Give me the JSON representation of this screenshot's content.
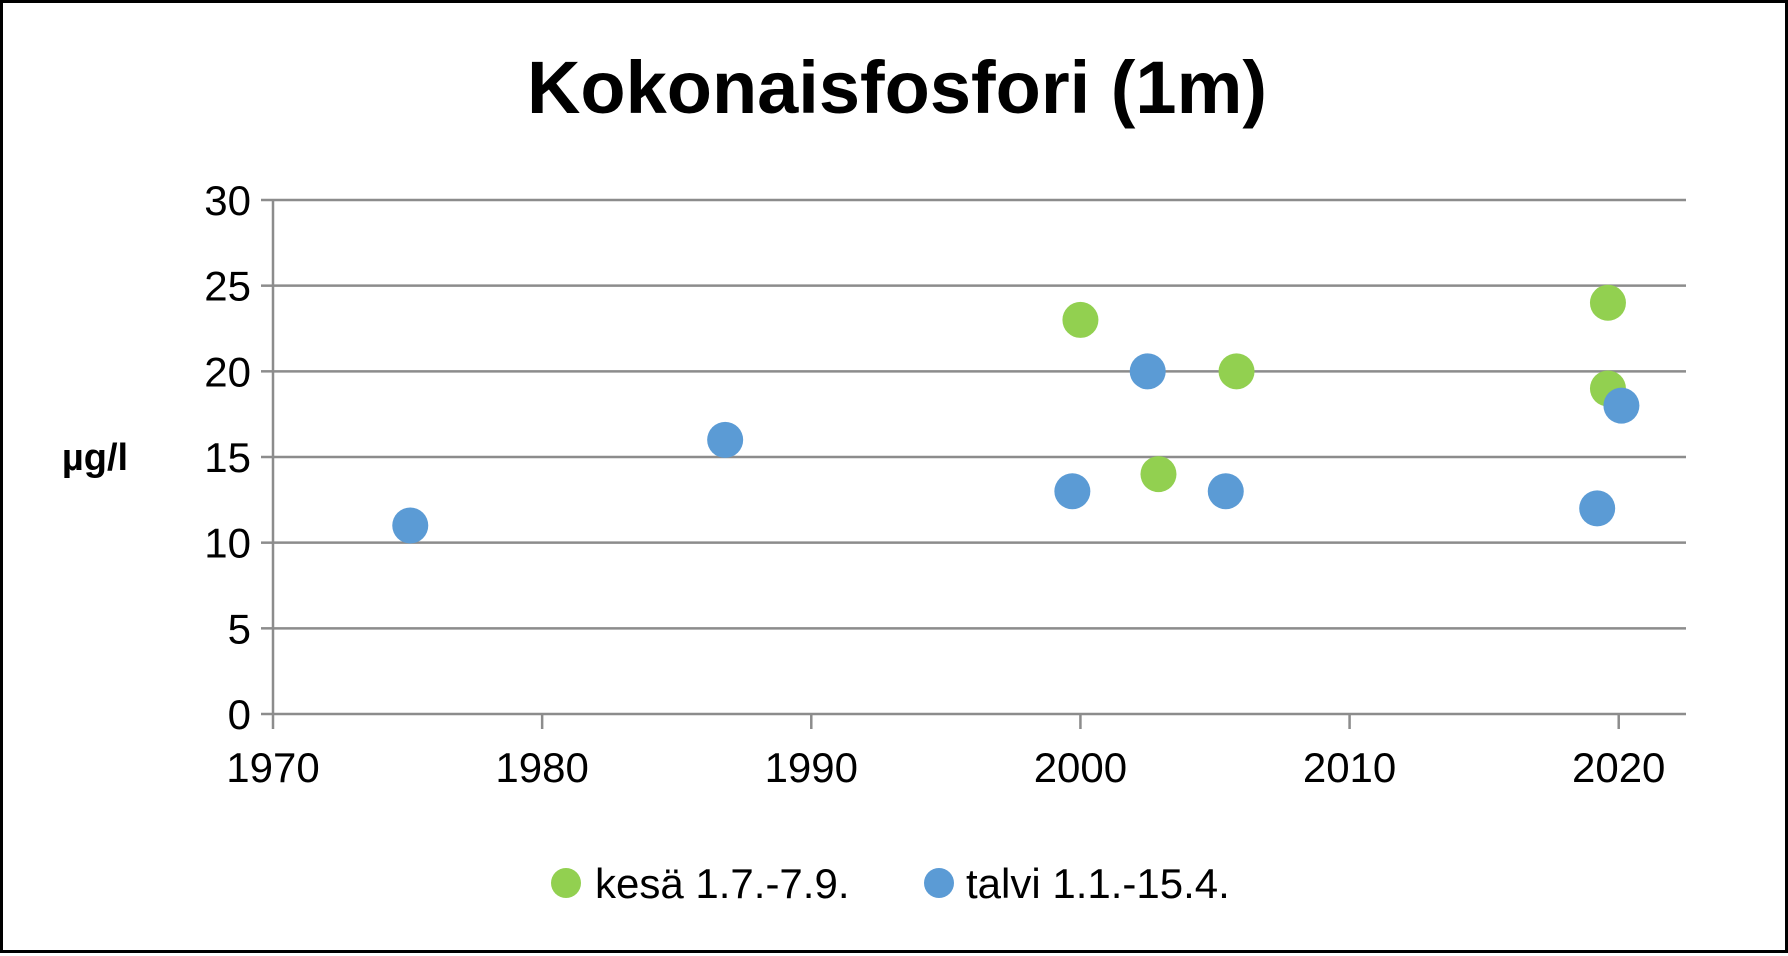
{
  "chart_data": {
    "type": "scatter",
    "title": "Kokonaisfosfori (1m)",
    "xlabel": "",
    "ylabel": "µg/l",
    "xlim": [
      1970,
      2022.5
    ],
    "ylim": [
      0,
      30
    ],
    "x_ticks": [
      1970,
      1980,
      1990,
      2000,
      2010,
      2020
    ],
    "y_ticks": [
      0,
      5,
      10,
      15,
      20,
      25,
      30
    ],
    "grid": true,
    "legend_position": "bottom",
    "series": [
      {
        "name": "kesä 1.7.-7.9.",
        "color": "#92d050",
        "points": [
          {
            "x": 2000.0,
            "y": 23
          },
          {
            "x": 2002.9,
            "y": 14
          },
          {
            "x": 2005.8,
            "y": 20
          },
          {
            "x": 2019.6,
            "y": 24
          },
          {
            "x": 2019.6,
            "y": 19
          }
        ]
      },
      {
        "name": "talvi 1.1.-15.4.",
        "color": "#5b9bd5",
        "points": [
          {
            "x": 1975.1,
            "y": 11
          },
          {
            "x": 1986.8,
            "y": 16
          },
          {
            "x": 1999.7,
            "y": 13
          },
          {
            "x": 2002.5,
            "y": 20
          },
          {
            "x": 2005.4,
            "y": 13
          },
          {
            "x": 2019.2,
            "y": 12
          },
          {
            "x": 2020.1,
            "y": 18
          }
        ]
      }
    ]
  }
}
